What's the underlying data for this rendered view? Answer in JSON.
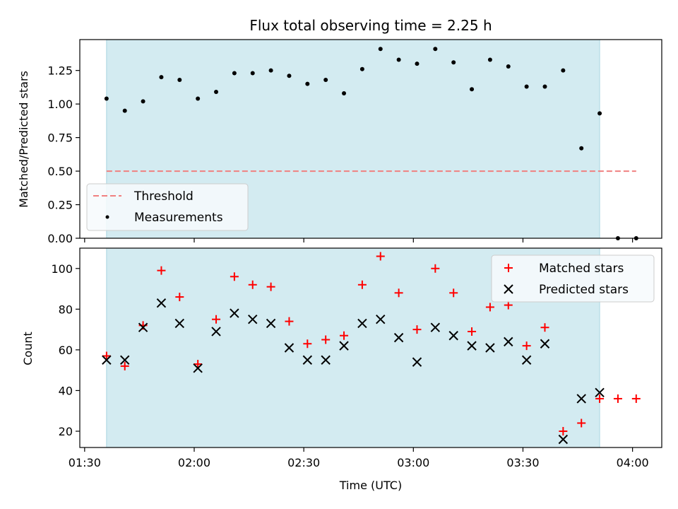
{
  "chart_data": [
    {
      "type": "scatter",
      "title": "Flux total observing time = 2.25 h",
      "xlabel": "",
      "ylabel": "Matched/Predicted stars",
      "ylim": [
        0,
        1.48
      ],
      "yticks": [
        "0.00",
        "0.25",
        "0.50",
        "0.75",
        "1.00",
        "1.25"
      ],
      "ytick_values": [
        0,
        0.25,
        0.5,
        0.75,
        1.0,
        1.25
      ],
      "shaded_span": [
        "01:36",
        "03:51"
      ],
      "shaded_color": "#d3ebf1",
      "threshold": {
        "name": "Threshold",
        "value": 0.5,
        "x": [
          "01:36",
          "04:01"
        ],
        "color": "#f08080"
      },
      "series": [
        {
          "name": "Measurements",
          "color": "#000000",
          "x": [
            "01:36",
            "01:41",
            "01:46",
            "01:51",
            "01:56",
            "02:01",
            "02:06",
            "02:11",
            "02:16",
            "02:21",
            "02:26",
            "02:31",
            "02:36",
            "02:41",
            "02:46",
            "02:51",
            "02:56",
            "03:01",
            "03:06",
            "03:11",
            "03:16",
            "03:21",
            "03:26",
            "03:31",
            "03:36",
            "03:41",
            "03:46",
            "03:51",
            "03:56",
            "04:01"
          ],
          "values": [
            1.04,
            0.95,
            1.02,
            1.2,
            1.18,
            1.04,
            1.09,
            1.23,
            1.23,
            1.25,
            1.21,
            1.15,
            1.18,
            1.08,
            1.26,
            1.41,
            1.33,
            1.3,
            1.41,
            1.31,
            1.11,
            1.33,
            1.28,
            1.13,
            1.13,
            1.25,
            0.67,
            0.93,
            0.0,
            0.0
          ]
        }
      ],
      "legend": "lower-left"
    },
    {
      "type": "scatter",
      "xlabel": "Time (UTC)",
      "ylabel": "Count",
      "ylim": [
        12,
        110
      ],
      "yticks": [
        "20",
        "40",
        "60",
        "80",
        "100"
      ],
      "ytick_values": [
        20,
        40,
        60,
        80,
        100
      ],
      "xticks": [
        "01:30",
        "02:00",
        "02:30",
        "03:00",
        "03:30",
        "04:00"
      ],
      "xlim": [
        "01:30",
        "04:08"
      ],
      "shaded_span": [
        "01:36",
        "03:51"
      ],
      "shaded_color": "#d3ebf1",
      "series": [
        {
          "name": "Matched stars",
          "color": "#ff0000",
          "marker": "plus",
          "x": [
            "01:36",
            "01:41",
            "01:46",
            "01:51",
            "01:56",
            "02:01",
            "02:06",
            "02:11",
            "02:16",
            "02:21",
            "02:26",
            "02:31",
            "02:36",
            "02:41",
            "02:46",
            "02:51",
            "02:56",
            "03:01",
            "03:06",
            "03:11",
            "03:16",
            "03:21",
            "03:26",
            "03:31",
            "03:36",
            "03:41",
            "03:46",
            "03:51",
            "03:56",
            "04:01"
          ],
          "values": [
            57,
            52,
            72,
            99,
            86,
            53,
            75,
            96,
            92,
            91,
            74,
            63,
            65,
            67,
            92,
            106,
            88,
            70,
            100,
            88,
            69,
            81,
            82,
            62,
            71,
            20,
            24,
            36,
            36,
            36
          ]
        },
        {
          "name": "Predicted stars",
          "color": "#000000",
          "marker": "x",
          "x": [
            "01:36",
            "01:41",
            "01:46",
            "01:51",
            "01:56",
            "02:01",
            "02:06",
            "02:11",
            "02:16",
            "02:21",
            "02:26",
            "02:31",
            "02:36",
            "02:41",
            "02:46",
            "02:51",
            "02:56",
            "03:01",
            "03:06",
            "03:11",
            "03:16",
            "03:21",
            "03:26",
            "03:31",
            "03:36",
            "03:41",
            "03:46",
            "03:51"
          ],
          "values": [
            55,
            55,
            71,
            83,
            73,
            51,
            69,
            78,
            75,
            73,
            61,
            55,
            55,
            62,
            73,
            75,
            66,
            54,
            71,
            67,
            62,
            61,
            64,
            55,
            63,
            16,
            36,
            39
          ]
        }
      ],
      "legend": "upper-right"
    }
  ]
}
